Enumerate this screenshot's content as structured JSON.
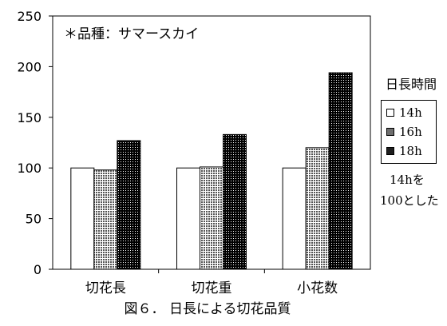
{
  "chart_data": {
    "type": "bar",
    "categories": [
      "切花長",
      "切花重",
      "小花数"
    ],
    "series": [
      {
        "name": "14h",
        "values": [
          100,
          100,
          100
        ]
      },
      {
        "name": "16h",
        "values": [
          98,
          101,
          120
        ]
      },
      {
        "name": "18h",
        "values": [
          127,
          133,
          194
        ]
      }
    ],
    "ylim": [
      0,
      250
    ],
    "yticks": [
      0,
      50,
      100,
      150,
      200,
      250
    ],
    "annotation": "＊品種：サマースカイ",
    "legend_title": "日長時間",
    "legend_position": "right",
    "note_line1": "14hを",
    "note_line2": "100とした",
    "caption": "図６． 日長による切花品質",
    "grid": false
  },
  "colors": {
    "series_14h": "#ffffff",
    "series_16h": "#6e6e6e",
    "series_18h": "#2a2a2a",
    "axis": "#000000"
  }
}
